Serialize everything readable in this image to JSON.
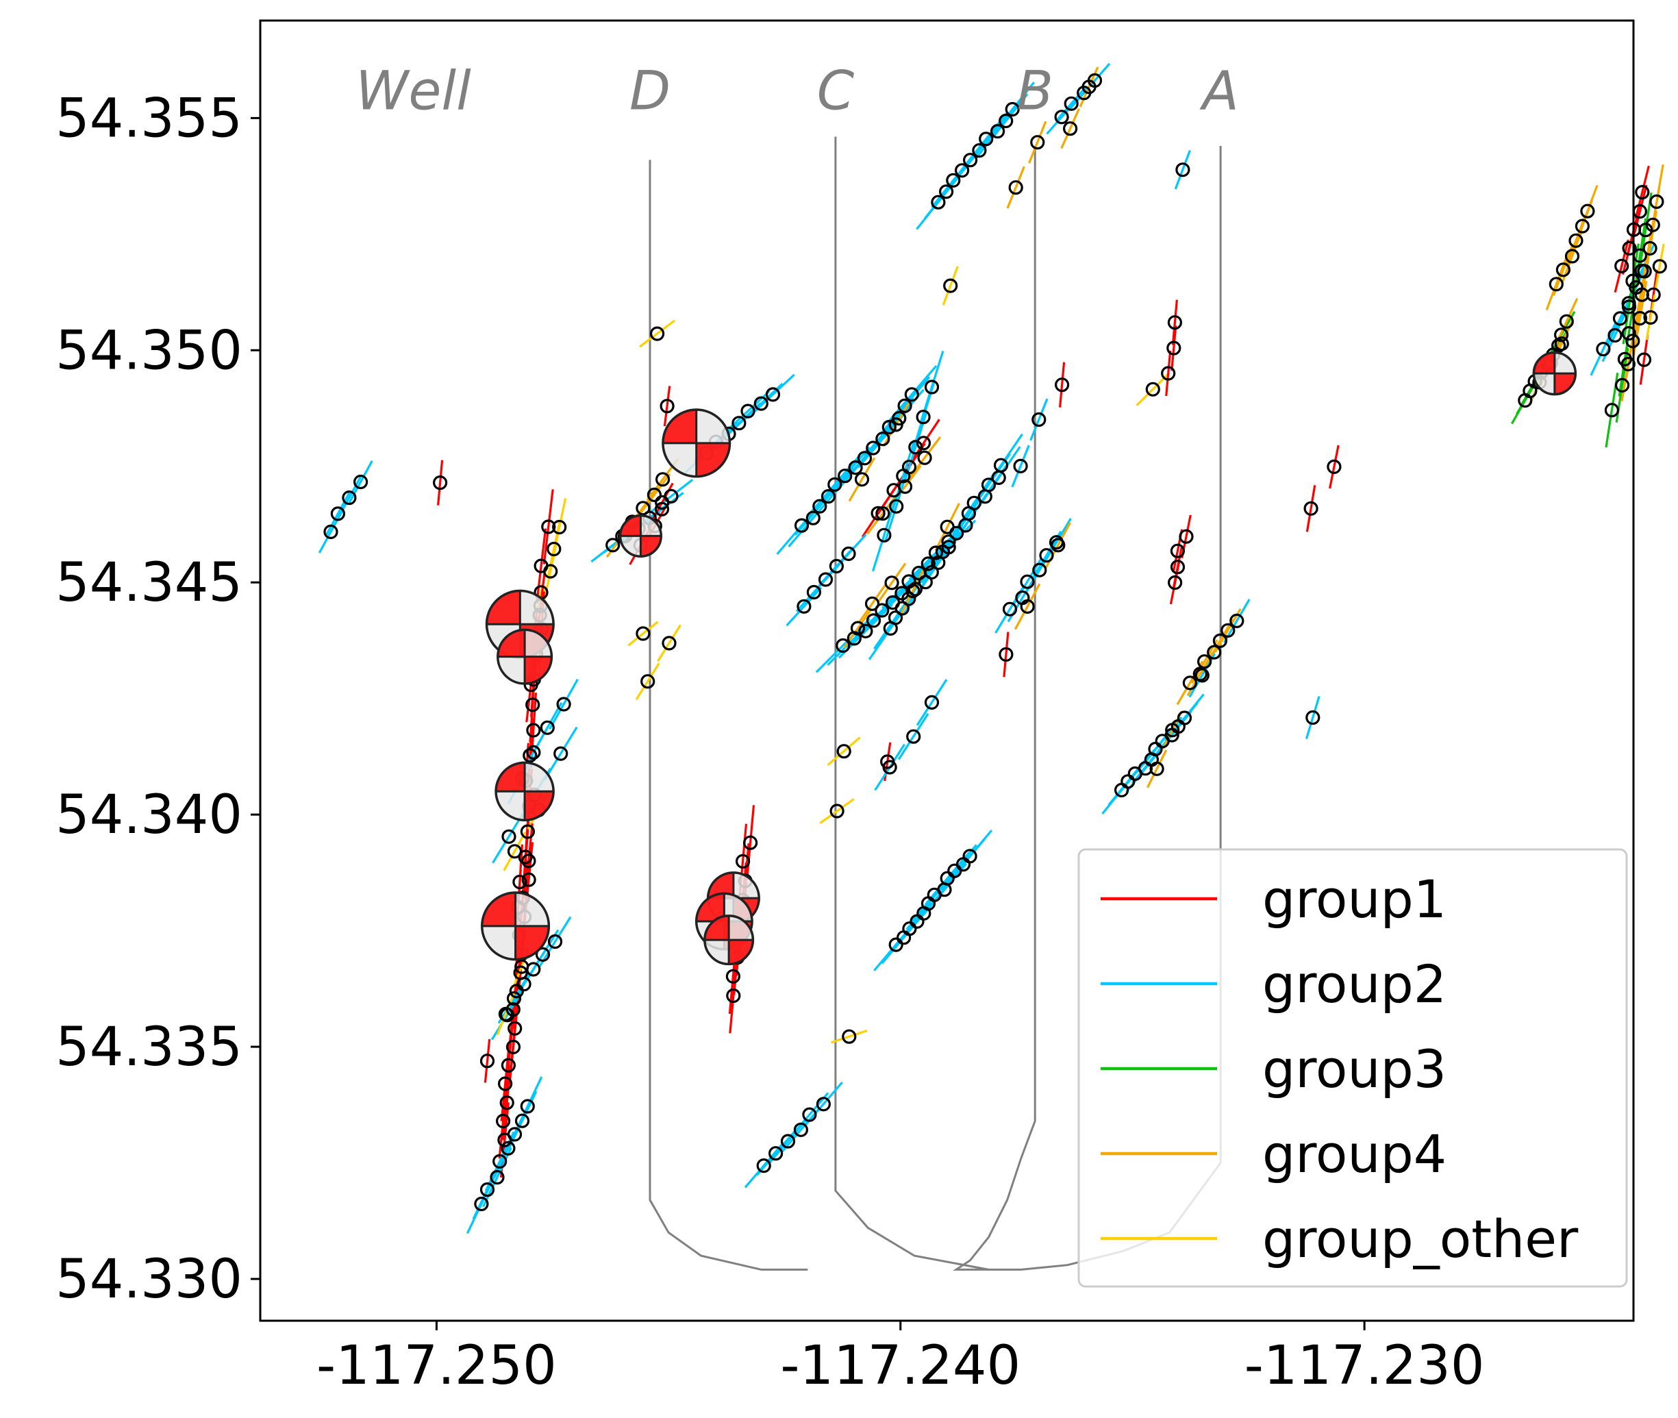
{
  "chart_data": {
    "type": "scatter",
    "title": "",
    "xlabel": "",
    "ylabel": "",
    "xlim": [
      -117.2538,
      -117.2242
    ],
    "ylim": [
      54.3291,
      54.3571
    ],
    "x_ticks": [
      {
        "value": -117.25,
        "label": "-117.250"
      },
      {
        "value": -117.24,
        "label": "-117.240"
      },
      {
        "value": -117.23,
        "label": "-117.230"
      }
    ],
    "y_ticks": [
      {
        "value": 54.355,
        "label": "54.355"
      },
      {
        "value": 54.35,
        "label": "54.350"
      },
      {
        "value": 54.345,
        "label": "54.345"
      },
      {
        "value": 54.34,
        "label": "54.340"
      },
      {
        "value": 54.335,
        "label": "54.335"
      },
      {
        "value": 54.33,
        "label": "54.330"
      }
    ],
    "grid": false,
    "legend_position": "lower-right",
    "colors": {
      "group1": "#ff0000",
      "group2": "#00c8ff",
      "group3": "#10c010",
      "group4": "#f5a800",
      "group_other": "#ffd000",
      "well": "#808080",
      "marker_edge": "#000000",
      "beachball_fill": "#ff0000"
    },
    "legend": [
      {
        "group": "group1",
        "label": "group1"
      },
      {
        "group": "group2",
        "label": "group2"
      },
      {
        "group": "group3",
        "label": "group3"
      },
      {
        "group": "group4",
        "label": "group4"
      },
      {
        "group": "group_other",
        "label": "group_other"
      }
    ],
    "wells": [
      {
        "label": "Well",
        "label_x": -117.2505,
        "label_y": 54.3556,
        "path": []
      },
      {
        "label": "D",
        "label_x": -117.2454,
        "label_y": 54.3556,
        "path": [
          [
            -117.2454,
            54.3541
          ],
          [
            -117.2454,
            54.3317
          ],
          [
            -117.245,
            54.331
          ],
          [
            -117.2443,
            54.3305
          ],
          [
            -117.243,
            54.3302
          ],
          [
            -117.242,
            54.3302
          ]
        ]
      },
      {
        "label": "C",
        "label_x": -117.2414,
        "label_y": 54.3556,
        "path": [
          [
            -117.2414,
            54.3546
          ],
          [
            -117.2414,
            54.3319
          ],
          [
            -117.2407,
            54.3311
          ],
          [
            -117.2397,
            54.3305
          ],
          [
            -117.2381,
            54.3302
          ]
        ]
      },
      {
        "label": "B",
        "label_x": -117.2371,
        "label_y": 54.3556,
        "path": [
          [
            -117.2371,
            54.3544
          ],
          [
            -117.2371,
            54.3334
          ],
          [
            -117.2374,
            54.3326
          ],
          [
            -117.2377,
            54.3317
          ],
          [
            -117.2381,
            54.3309
          ],
          [
            -117.2385,
            54.3304
          ],
          [
            -117.2388,
            54.3302
          ],
          [
            -117.2381,
            54.3302
          ]
        ]
      },
      {
        "label": "A",
        "label_x": -117.2331,
        "label_y": 54.3556,
        "path": [
          [
            -117.2331,
            54.3544
          ],
          [
            -117.2331,
            54.3325
          ],
          [
            -117.2342,
            54.331
          ],
          [
            -117.2352,
            54.3306
          ],
          [
            -117.2364,
            54.3303
          ],
          [
            -117.2374,
            54.3302
          ],
          [
            -117.2381,
            54.3302
          ]
        ]
      }
    ],
    "clusters": [
      {
        "group": "group2",
        "x1": -117.2523,
        "y1": 54.3461,
        "x2": -117.2517,
        "y2": 54.3472,
        "n": 4
      },
      {
        "group": "group1",
        "x1": -117.25,
        "y1": 54.3466,
        "x2": -117.2499,
        "y2": 54.3477,
        "n": 1
      },
      {
        "group": "group_other",
        "x1": -117.2478,
        "y1": 54.3443,
        "x2": -117.2474,
        "y2": 54.3462,
        "n": 5
      },
      {
        "group": "group1",
        "x1": -117.248,
        "y1": 54.3428,
        "x2": -117.2476,
        "y2": 54.3462,
        "n": 5
      },
      {
        "group": "group1",
        "x1": -117.2482,
        "y1": 54.338,
        "x2": -117.2478,
        "y2": 54.344,
        "n": 12
      },
      {
        "group": "group2",
        "x1": -117.2482,
        "y1": 54.3408,
        "x2": -117.2473,
        "y2": 54.3424,
        "n": 4
      },
      {
        "group": "group2",
        "x1": -117.2484,
        "y1": 54.3395,
        "x2": -117.2473,
        "y2": 54.3413,
        "n": 3
      },
      {
        "group": "group_other",
        "x1": -117.2483,
        "y1": 54.3392,
        "x2": -117.2478,
        "y2": 54.3401,
        "n": 2
      },
      {
        "group": "group1",
        "x1": -117.2486,
        "y1": 54.333,
        "x2": -117.248,
        "y2": 54.339,
        "n": 16
      },
      {
        "group": "group2",
        "x1": -117.2485,
        "y1": 54.3357,
        "x2": -117.2475,
        "y2": 54.3373,
        "n": 6
      },
      {
        "group": "group_other",
        "x1": -117.2485,
        "y1": 54.3357,
        "x2": -117.2481,
        "y2": 54.3367,
        "n": 2
      },
      {
        "group": "group2",
        "x1": -117.249,
        "y1": 54.3316,
        "x2": -117.248,
        "y2": 54.3337,
        "n": 8
      },
      {
        "group": "group1",
        "x1": -117.249,
        "y1": 54.3342,
        "x2": -117.2489,
        "y2": 54.3352,
        "n": 1
      },
      {
        "group": "group2",
        "x1": -117.2462,
        "y1": 54.3458,
        "x2": -117.2449,
        "y2": 54.3468,
        "n": 6
      },
      {
        "group": "group4",
        "x1": -117.246,
        "y1": 54.346,
        "x2": -117.2451,
        "y2": 54.3472,
        "n": 5
      },
      {
        "group": "group1",
        "x1": -117.2456,
        "y1": 54.3458,
        "x2": -117.2451,
        "y2": 54.3467,
        "n": 3
      },
      {
        "group": "group_other",
        "x1": -117.2458,
        "y1": 54.3437,
        "x2": -117.2453,
        "y2": 54.3441,
        "n": 1
      },
      {
        "group": "group_other",
        "x1": -117.2455,
        "y1": 54.3429,
        "x2": -117.245,
        "y2": 54.3437,
        "n": 2
      },
      {
        "group": "group_other",
        "x1": -117.2456,
        "y1": 54.35,
        "x2": -117.2448,
        "y2": 54.3506,
        "n": 1
      },
      {
        "group": "group1",
        "x1": -117.2451,
        "y1": 54.3484,
        "x2": -117.245,
        "y2": 54.3492,
        "n": 1
      },
      {
        "group": "group2",
        "x1": -117.2442,
        "y1": 54.3478,
        "x2": -117.2428,
        "y2": 54.3491,
        "n": 7
      },
      {
        "group": "group1",
        "x1": -117.2436,
        "y1": 54.3361,
        "x2": -117.2433,
        "y2": 54.3394,
        "n": 9
      },
      {
        "group": "group2",
        "x1": -117.2429,
        "y1": 54.3324,
        "x2": -117.2417,
        "y2": 54.3338,
        "n": 6
      },
      {
        "group": "group2",
        "x1": -117.2421,
        "y1": 54.3462,
        "x2": -117.2397,
        "y2": 54.349,
        "n": 14
      },
      {
        "group": "group4",
        "x1": -117.2408,
        "y1": 54.3472,
        "x2": -117.2401,
        "y2": 54.3484,
        "n": 2
      },
      {
        "group": "group1",
        "x1": -117.2405,
        "y1": 54.3465,
        "x2": -117.2395,
        "y2": 54.348,
        "n": 4
      },
      {
        "group": "group4",
        "x1": -117.2404,
        "y1": 54.3465,
        "x2": -117.2395,
        "y2": 54.3477,
        "n": 3
      },
      {
        "group": "group2",
        "x1": -117.2403,
        "y1": 54.346,
        "x2": -117.2393,
        "y2": 54.3492,
        "n": 6
      },
      {
        "group": "group2",
        "x1": -117.2421,
        "y1": 54.3445,
        "x2": -117.2411,
        "y2": 54.3456,
        "n": 5
      },
      {
        "group": "group2",
        "x1": -117.2412,
        "y1": 54.3436,
        "x2": -117.239,
        "y2": 54.3458,
        "n": 12
      },
      {
        "group": "group4",
        "x1": -117.2409,
        "y1": 54.344,
        "x2": -117.2402,
        "y2": 54.345,
        "n": 3
      },
      {
        "group": "group2",
        "x1": -117.2402,
        "y1": 54.344,
        "x2": -117.2378,
        "y2": 54.3475,
        "n": 18
      },
      {
        "group": "group4",
        "x1": -117.2397,
        "y1": 54.3448,
        "x2": -117.239,
        "y2": 54.3462,
        "n": 2
      },
      {
        "group": "group1",
        "x1": -117.2404,
        "y1": 54.3408,
        "x2": -117.2403,
        "y2": 54.3415,
        "n": 1
      },
      {
        "group": "group2",
        "x1": -117.2402,
        "y1": 54.341,
        "x2": -117.2393,
        "y2": 54.3424,
        "n": 3
      },
      {
        "group": "group_other",
        "x1": -117.2416,
        "y1": 54.3411,
        "x2": -117.2409,
        "y2": 54.3417,
        "n": 1
      },
      {
        "group": "group_other",
        "x1": -117.2417,
        "y1": 54.3398,
        "x2": -117.241,
        "y2": 54.3403,
        "n": 1
      },
      {
        "group": "group2",
        "x1": -117.2401,
        "y1": 54.3372,
        "x2": -117.2385,
        "y2": 54.3391,
        "n": 12
      },
      {
        "group": "group_other",
        "x1": -117.2414,
        "y1": 54.3351,
        "x2": -117.2408,
        "y2": 54.3353,
        "n": 1
      },
      {
        "group": "group_other",
        "x1": -117.2391,
        "y1": 54.351,
        "x2": -117.2388,
        "y2": 54.3518,
        "n": 1
      },
      {
        "group": "group2",
        "x1": -117.2392,
        "y1": 54.3532,
        "x2": -117.2376,
        "y2": 54.3552,
        "n": 10
      },
      {
        "group": "group4",
        "x1": -117.2375,
        "y1": 54.3535,
        "x2": -117.2371,
        "y2": 54.3545,
        "n": 2
      },
      {
        "group": "group2",
        "x1": -117.2365,
        "y1": 54.355,
        "x2": -117.2358,
        "y2": 54.3558,
        "n": 4
      },
      {
        "group": "group4",
        "x1": -117.2364,
        "y1": 54.3548,
        "x2": -117.236,
        "y2": 54.3557,
        "n": 2
      },
      {
        "group": "group1",
        "x1": -117.2365,
        "y1": 54.3487,
        "x2": -117.2364,
        "y2": 54.3498,
        "n": 1
      },
      {
        "group": "group2",
        "x1": -117.2374,
        "y1": 54.3475,
        "x2": -117.237,
        "y2": 54.3485,
        "n": 2
      },
      {
        "group": "group2",
        "x1": -117.2376,
        "y1": 54.3444,
        "x2": -117.2367,
        "y2": 54.3459,
        "n": 6
      },
      {
        "group": "group4",
        "x1": -117.2373,
        "y1": 54.3445,
        "x2": -117.2366,
        "y2": 54.3458,
        "n": 2
      },
      {
        "group": "group1",
        "x1": -117.2378,
        "y1": 54.3429,
        "x2": -117.2377,
        "y2": 54.344,
        "n": 1
      },
      {
        "group": "group_other",
        "x1": -117.235,
        "y1": 54.3488,
        "x2": -117.2342,
        "y2": 54.3496,
        "n": 1
      },
      {
        "group": "group1",
        "x1": -117.2342,
        "y1": 54.3495,
        "x2": -117.2341,
        "y2": 54.3506,
        "n": 3
      },
      {
        "group": "group1",
        "x1": -117.2341,
        "y1": 54.345,
        "x2": -117.2339,
        "y2": 54.346,
        "n": 4
      },
      {
        "group": "group2",
        "x1": -117.2341,
        "y1": 54.3535,
        "x2": -117.2338,
        "y2": 54.3543,
        "n": 1
      },
      {
        "group": "group4",
        "x1": -117.2337,
        "y1": 54.3428,
        "x2": -117.233,
        "y2": 54.344,
        "n": 6
      },
      {
        "group": "group2",
        "x1": -117.2335,
        "y1": 54.343,
        "x2": -117.2328,
        "y2": 54.3442,
        "n": 2
      },
      {
        "group": "group2",
        "x1": -117.2352,
        "y1": 54.3405,
        "x2": -117.2339,
        "y2": 54.3421,
        "n": 10
      },
      {
        "group": "group4",
        "x1": -117.2345,
        "y1": 54.341,
        "x2": -117.2341,
        "y2": 54.3418,
        "n": 2
      },
      {
        "group": "group1",
        "x1": -117.2313,
        "y1": 54.346,
        "x2": -117.2311,
        "y2": 54.3472,
        "n": 1
      },
      {
        "group": "group1",
        "x1": -117.2308,
        "y1": 54.347,
        "x2": -117.2306,
        "y2": 54.348,
        "n": 1
      },
      {
        "group": "group2",
        "x1": -117.2313,
        "y1": 54.3416,
        "x2": -117.231,
        "y2": 54.3426,
        "n": 1
      },
      {
        "group": "group3",
        "x1": -117.2265,
        "y1": 54.3489,
        "x2": -117.2257,
        "y2": 54.3503,
        "n": 8
      },
      {
        "group": "group4",
        "x1": -117.2262,
        "y1": 54.3493,
        "x2": -117.2256,
        "y2": 54.3506,
        "n": 4
      },
      {
        "group": "group4",
        "x1": -117.2258,
        "y1": 54.3514,
        "x2": -117.2252,
        "y2": 54.353,
        "n": 6
      },
      {
        "group": "group2",
        "x1": -117.2248,
        "y1": 54.35,
        "x2": -117.224,
        "y2": 54.3517,
        "n": 6
      },
      {
        "group": "group1",
        "x1": -117.2244,
        "y1": 54.3518,
        "x2": -117.224,
        "y2": 54.3534,
        "n": 5
      },
      {
        "group": "group3",
        "x1": -117.2246,
        "y1": 54.3487,
        "x2": -117.224,
        "y2": 54.3526,
        "n": 8
      },
      {
        "group": "group4",
        "x1": -117.2243,
        "y1": 54.3497,
        "x2": -117.2237,
        "y2": 54.3532,
        "n": 8
      },
      {
        "group": "group1",
        "x1": -117.224,
        "y1": 54.3498,
        "x2": -117.2238,
        "y2": 54.3512,
        "n": 2
      },
      {
        "group": "group_other",
        "x1": -117.2238,
        "y1": 54.3507,
        "x2": -117.2236,
        "y2": 54.3518,
        "n": 2
      }
    ],
    "beachballs": [
      {
        "x": -117.2482,
        "y": 54.3441,
        "r_data": 0.00072
      },
      {
        "x": -117.2481,
        "y": 54.3434,
        "r_data": 0.00058
      },
      {
        "x": -117.2481,
        "y": 54.3405,
        "r_data": 0.00062
      },
      {
        "x": -117.2483,
        "y": 54.3376,
        "r_data": 0.00072
      },
      {
        "x": -117.2444,
        "y": 54.348,
        "r_data": 0.00072
      },
      {
        "x": -117.2456,
        "y": 54.346,
        "r_data": 0.00044
      },
      {
        "x": -117.2436,
        "y": 54.3382,
        "r_data": 0.00055
      },
      {
        "x": -117.2438,
        "y": 54.3377,
        "r_data": 0.0006
      },
      {
        "x": -117.2437,
        "y": 54.3373,
        "r_data": 0.00052
      },
      {
        "x": -117.2259,
        "y": 54.3495,
        "r_data": 0.00045
      }
    ]
  }
}
